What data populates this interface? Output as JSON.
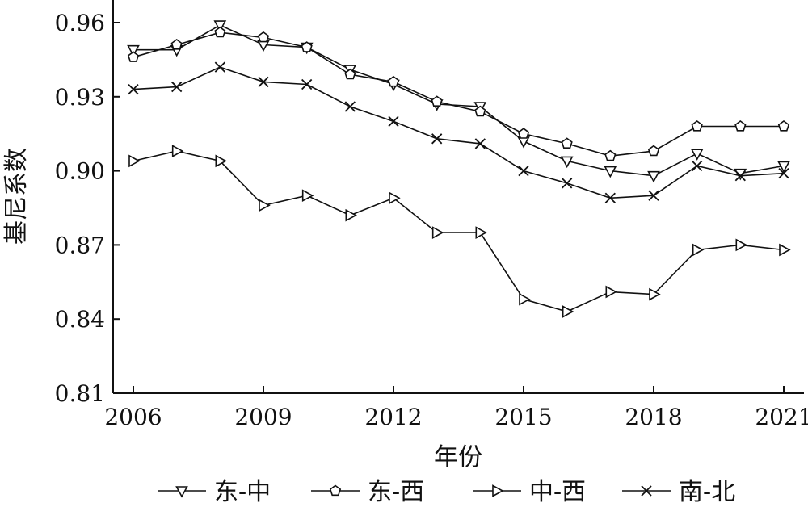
{
  "chart_data": {
    "type": "line",
    "xlabel": "年份",
    "ylabel": "基尼系数",
    "x": [
      2006,
      2007,
      2008,
      2009,
      2010,
      2011,
      2012,
      2013,
      2014,
      2015,
      2016,
      2017,
      2018,
      2019,
      2020,
      2021
    ],
    "xlim": [
      2006,
      2021
    ],
    "xticks": [
      "2006",
      "2009",
      "2012",
      "2015",
      "2018",
      "2021"
    ],
    "ylim": [
      0.81,
      0.96
    ],
    "yticks": [
      "0.81",
      "0.84",
      "0.87",
      "0.90",
      "0.93",
      "0.96"
    ],
    "grid": false,
    "legend_position": "bottom",
    "series": [
      {
        "name": "东-中",
        "marker": "triangle-down",
        "values": [
          0.949,
          0.949,
          0.959,
          0.951,
          0.95,
          0.941,
          0.935,
          0.927,
          0.926,
          0.912,
          0.904,
          0.9,
          0.898,
          0.907,
          0.899,
          0.902
        ]
      },
      {
        "name": "东-西",
        "marker": "pentagon",
        "values": [
          0.946,
          0.951,
          0.956,
          0.954,
          0.95,
          0.939,
          0.936,
          0.928,
          0.924,
          0.915,
          0.911,
          0.906,
          0.908,
          0.918,
          0.918,
          0.918
        ]
      },
      {
        "name": "中-西",
        "marker": "triangle-right",
        "values": [
          0.904,
          0.908,
          0.904,
          0.886,
          0.89,
          0.882,
          0.889,
          0.875,
          0.875,
          0.848,
          0.843,
          0.851,
          0.85,
          0.868,
          0.87,
          0.868
        ]
      },
      {
        "name": "南-北",
        "marker": "x",
        "values": [
          0.933,
          0.934,
          0.942,
          0.936,
          0.935,
          0.926,
          0.92,
          0.913,
          0.911,
          0.9,
          0.895,
          0.889,
          0.89,
          0.902,
          0.898,
          0.899
        ]
      }
    ]
  }
}
